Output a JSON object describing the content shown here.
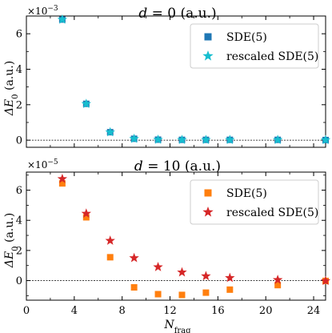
{
  "chart_data": [
    {
      "type": "scatter",
      "title": "d = 0 (a.u.)",
      "ylabel": "ΔE₀ (a.u.)",
      "xlabel": "",
      "y_scale_label": "×10⁻³",
      "xlim": [
        0,
        25
      ],
      "ylim": [
        -0.4,
        7.0
      ],
      "y_ticks": [
        0,
        2,
        4,
        6
      ],
      "x_ticks": [
        0,
        4,
        8,
        12,
        16,
        20,
        24
      ],
      "show_x_tick_labels": false,
      "zero_line": true,
      "legend_position": "top-right",
      "series": [
        {
          "name": "SDE(5)",
          "marker": "square",
          "color": "#1f77b4",
          "x": [
            3,
            5,
            7,
            9,
            11,
            13,
            15,
            17,
            21,
            25
          ],
          "y": [
            6.8,
            2.05,
            0.45,
            0.08,
            0.03,
            0.02,
            0.02,
            0.02,
            0.02,
            0.01
          ]
        },
        {
          "name": "rescaled SDE(5)",
          "marker": "star",
          "color": "#17becf",
          "x": [
            3,
            5,
            7,
            9,
            11,
            13,
            15,
            17,
            21,
            25
          ],
          "y": [
            6.8,
            2.05,
            0.45,
            0.08,
            0.03,
            0.02,
            0.02,
            0.02,
            0.02,
            0.01
          ]
        }
      ]
    },
    {
      "type": "scatter",
      "title": "d = 10 (a.u.)",
      "ylabel": "ΔE₀ (a.u.)",
      "xlabel": "N_frag",
      "y_scale_label": "×10⁻⁵",
      "xlim": [
        0,
        25
      ],
      "ylim": [
        -1.3,
        7.2
      ],
      "y_ticks": [
        0,
        2,
        4,
        6
      ],
      "x_ticks": [
        0,
        4,
        8,
        12,
        16,
        20,
        24
      ],
      "show_x_tick_labels": true,
      "zero_line": true,
      "legend_position": "top-right",
      "series": [
        {
          "name": "SDE(5)",
          "marker": "square",
          "color": "#ff7f0e",
          "x": [
            3,
            5,
            7,
            9,
            11,
            13,
            15,
            17,
            21,
            25
          ],
          "y": [
            6.45,
            4.2,
            1.55,
            -0.45,
            -0.9,
            -0.95,
            -0.8,
            -0.6,
            -0.3,
            -0.02
          ]
        },
        {
          "name": "rescaled SDE(5)",
          "marker": "star",
          "color": "#d62728",
          "x": [
            3,
            5,
            7,
            9,
            11,
            13,
            15,
            17,
            21,
            25
          ],
          "y": [
            6.75,
            4.45,
            2.65,
            1.5,
            0.9,
            0.55,
            0.3,
            0.18,
            0.05,
            -0.02
          ]
        }
      ]
    }
  ],
  "labels": {
    "top_title_var": "d",
    "top_title_rest": " = 0 (a.u.)",
    "bottom_title_var": "d",
    "bottom_title_rest": " = 10 (a.u.)",
    "ylabel_main": "ΔE",
    "ylabel_sub": "0",
    "ylabel_rest": " (a.u.)",
    "xlabel_main": "N",
    "xlabel_sub": "frag",
    "top_scale_base": "×10",
    "top_scale_exp": "−3",
    "bottom_scale_base": "×10",
    "bottom_scale_exp": "−5"
  }
}
